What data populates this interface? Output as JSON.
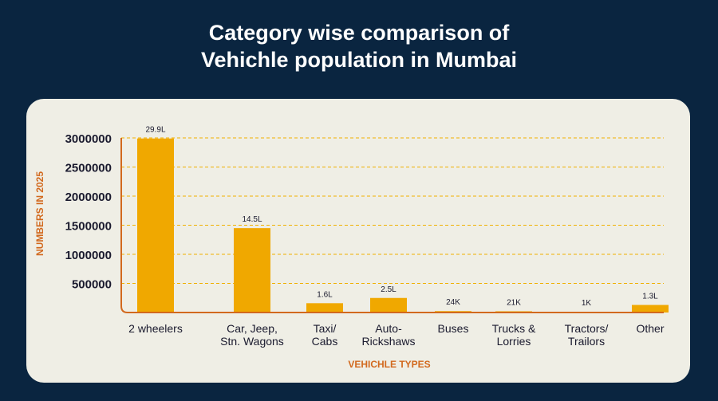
{
  "colors": {
    "background": "#0a2540",
    "card": "#efeee5",
    "bar": "#f0a800",
    "axis": "#d2691e",
    "grid": "#f0b000",
    "text": "#1a1a2e"
  },
  "chart_data": {
    "type": "bar",
    "title": "Category wise comparison of Vehichle population in Mumbai",
    "title_lines": [
      "Category wise comparison of",
      "Vehichle population in Mumbai"
    ],
    "xlabel": "VEHICHLE TYPES",
    "ylabel": "NUMBERS IN 2025",
    "ylim": [
      0,
      3000000
    ],
    "yticks": [
      "500000",
      "1000000",
      "1500000",
      "2000000",
      "2500000",
      "3000000"
    ],
    "ytick_values": [
      500000,
      1000000,
      1500000,
      2000000,
      2500000,
      3000000
    ],
    "grid": true,
    "categories": [
      [
        "2 wheelers"
      ],
      [
        "Car, Jeep,",
        "Stn. Wagons"
      ],
      [
        "Taxi/",
        "Cabs"
      ],
      [
        "Auto-",
        "Rickshaws"
      ],
      [
        "Buses"
      ],
      [
        "Trucks &",
        "Lorries"
      ],
      [
        "Tractors/",
        "Trailors"
      ],
      [
        "Other"
      ]
    ],
    "values": [
      2990000,
      1450000,
      160000,
      250000,
      24000,
      21000,
      1000,
      130000
    ],
    "data_labels": [
      "29.9L",
      "14.5L",
      "1.6L",
      "2.5L",
      "24K",
      "21K",
      "1K",
      "1.3L"
    ]
  }
}
